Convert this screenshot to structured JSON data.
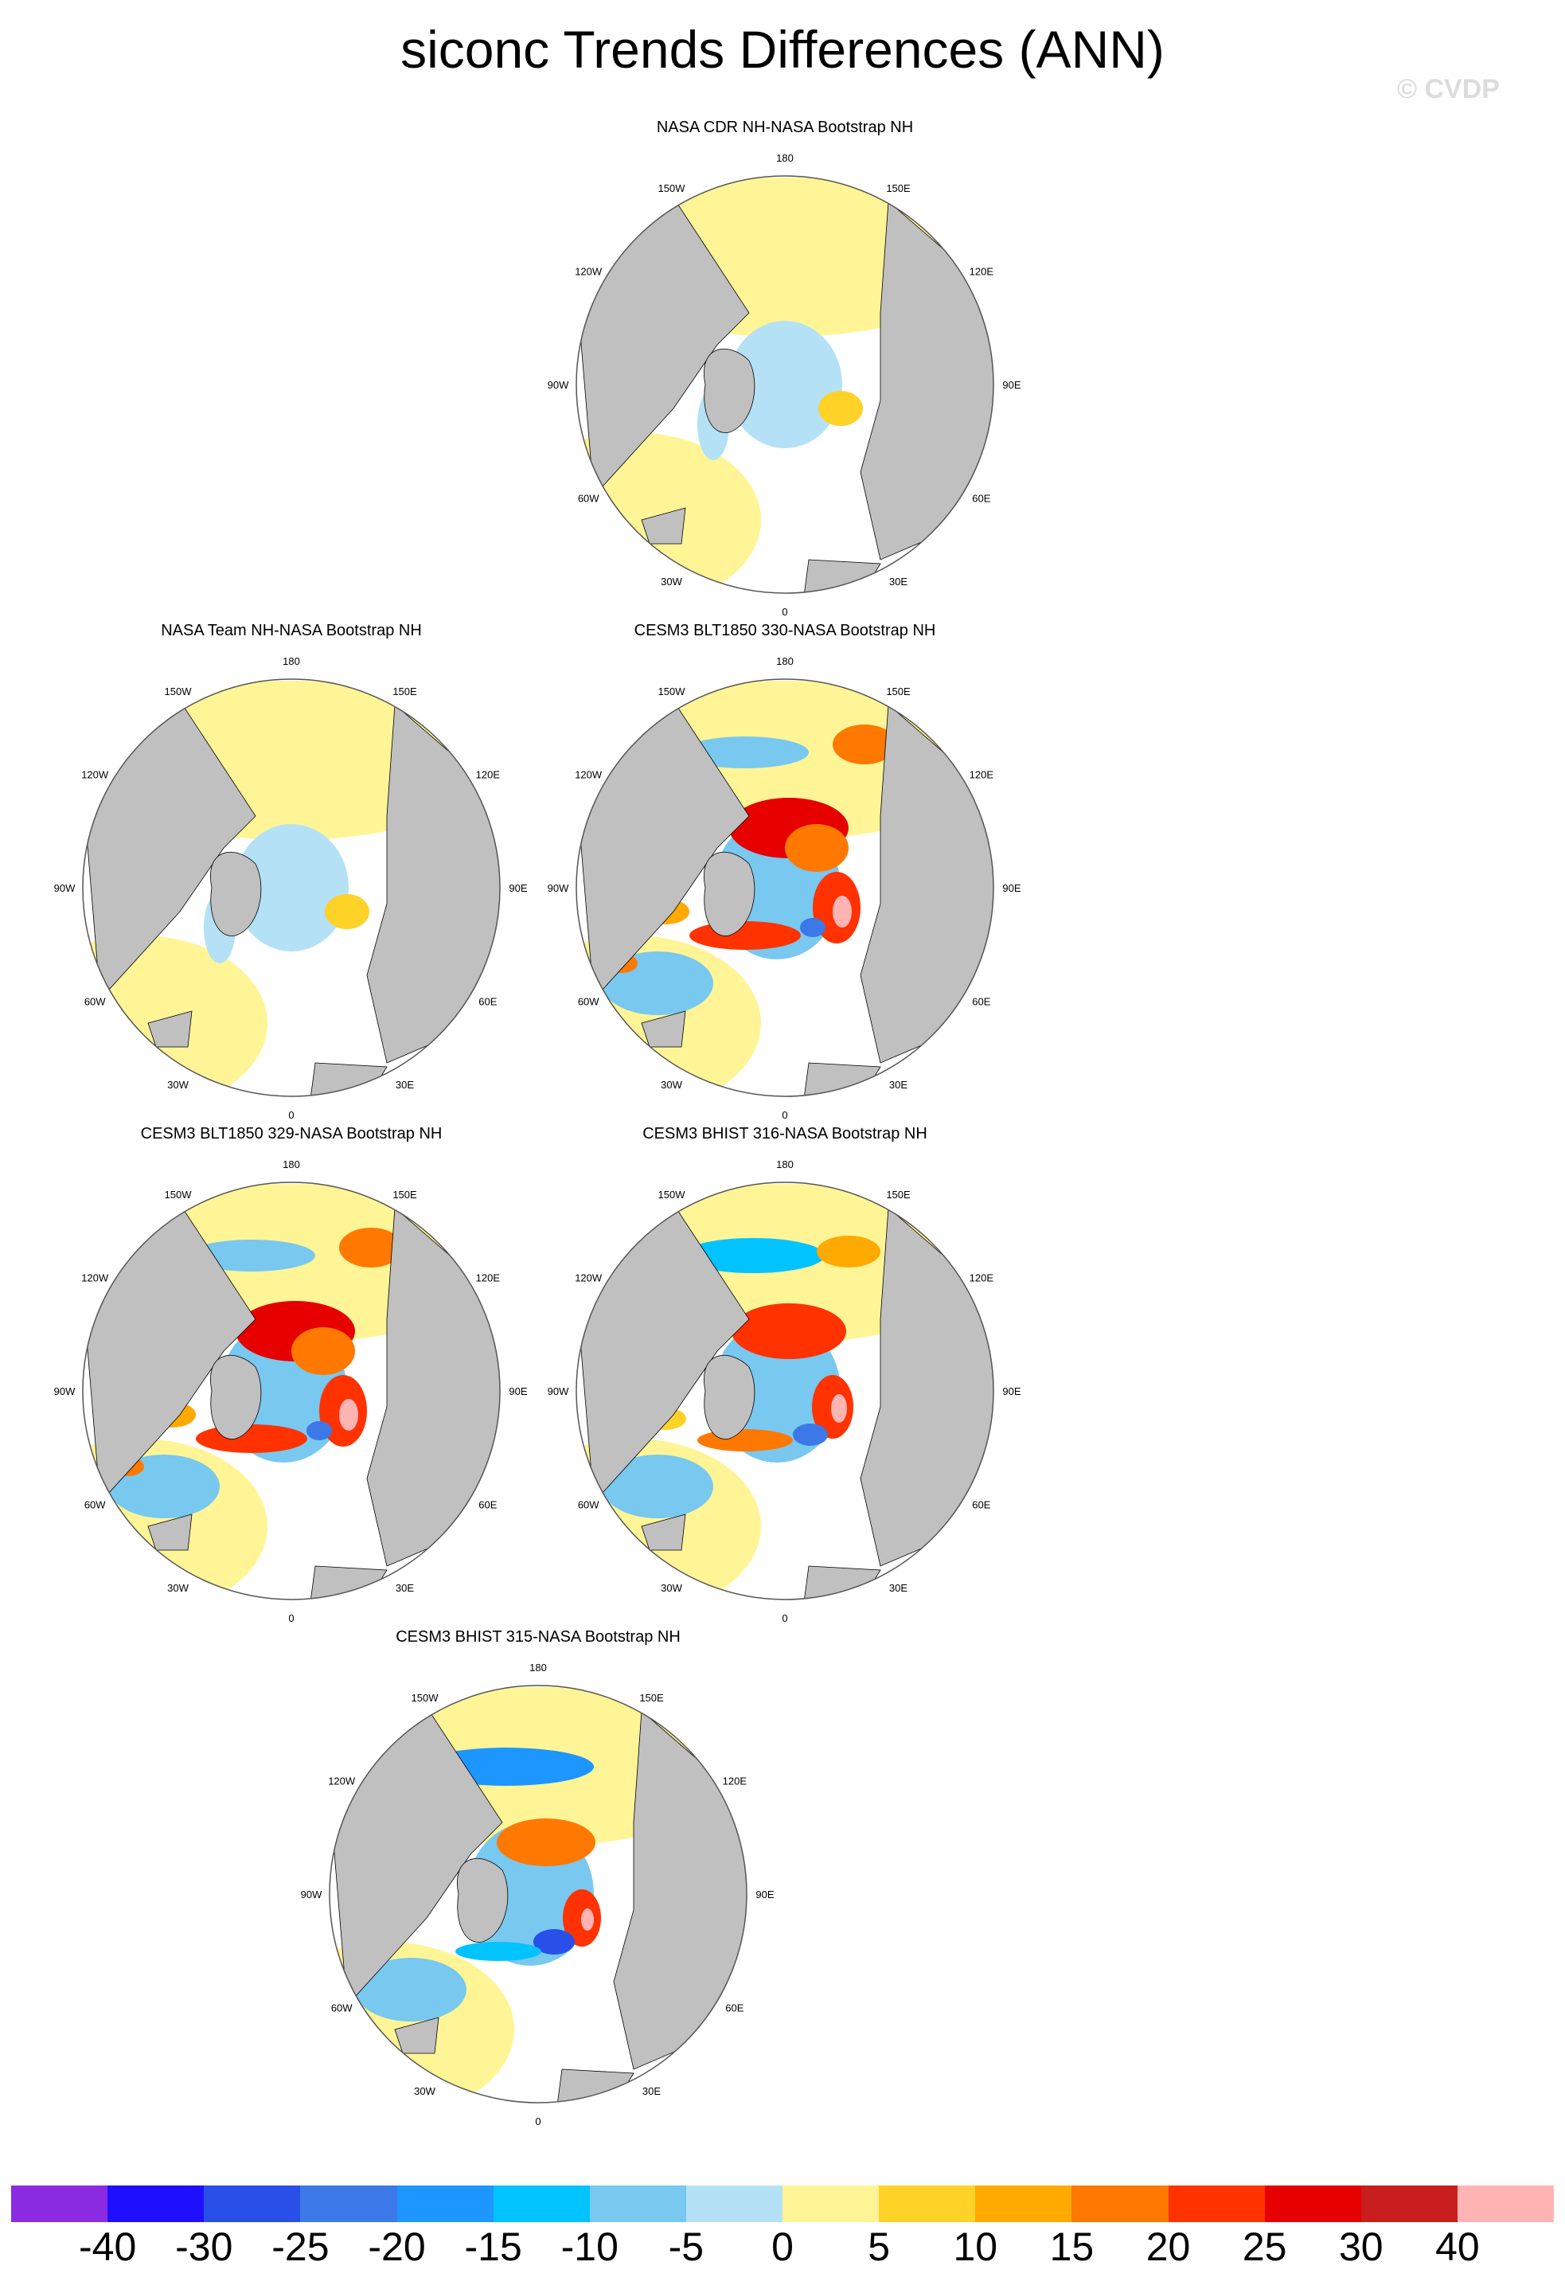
{
  "title": "siconc Trends Differences (ANN)",
  "watermark": "© CVDP",
  "longitude_labels": [
    "180",
    "150E",
    "120E",
    "90E",
    "60E",
    "30E",
    "0",
    "30W",
    "60W",
    "90W",
    "120W",
    "150W"
  ],
  "panels": [
    {
      "title": "NASA CDR NH-NASA Bootstrap NH",
      "pattern": "nearzero"
    },
    {
      "title": "NASA Team NH-NASA Bootstrap NH",
      "pattern": "nearzero"
    },
    {
      "title": "CESM3 BLT1850 330-NASA Bootstrap NH",
      "pattern": "strong_positive"
    },
    {
      "title": "CESM3 BLT1850 329-NASA Bootstrap NH",
      "pattern": "strong_positive"
    },
    {
      "title": "CESM3 BHIST 316-NASA Bootstrap NH",
      "pattern": "mixed"
    },
    {
      "title": "CESM3 BHIST 315-NASA Bootstrap NH",
      "pattern": "mixed_negative"
    }
  ],
  "colorbar": {
    "colors": [
      "#8a2be2",
      "#1e0fff",
      "#2850e8",
      "#3c78e8",
      "#1e96ff",
      "#00c3ff",
      "#78c8f0",
      "#b4e1f5",
      "#fff596",
      "#ffd228",
      "#ffaa00",
      "#ff7800",
      "#ff3200",
      "#e60000",
      "#c81e1e",
      "#ffb4b4"
    ],
    "labels": [
      "-40",
      "-30",
      "-25",
      "-20",
      "-15",
      "-10",
      "-5",
      "0",
      "5",
      "10",
      "15",
      "20",
      "25",
      "30",
      "40"
    ]
  },
  "colors": {
    "land": "#c0c0c0",
    "missing": "#ffffff",
    "outline": "#000000"
  }
}
